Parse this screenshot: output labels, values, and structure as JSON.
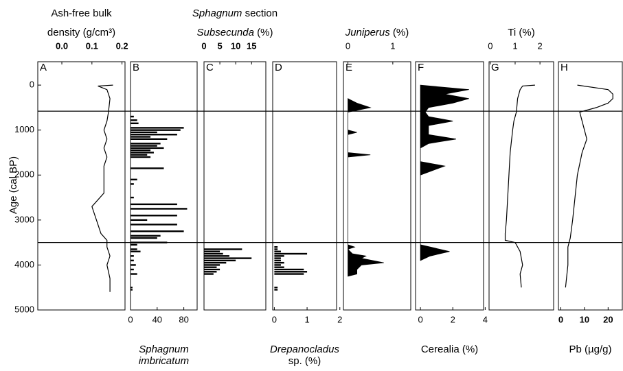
{
  "age_axis": {
    "label": "Age (cal BP)",
    "ylim": [
      -520,
      5000
    ],
    "yticks": [
      0,
      1000,
      2000,
      3000,
      4000,
      5000
    ],
    "zone_lines": [
      580,
      3500
    ]
  },
  "chart_data": [
    {
      "type": "line",
      "letter": "A",
      "side": "top",
      "bold_ticks": true,
      "title": [
        [
          {
            "text": "Ash-free bulk"
          }
        ],
        [
          {
            "text": "density (g/cm³)"
          }
        ]
      ],
      "xlim": [
        -0.08,
        0.21
      ],
      "xticks": [
        {
          "value": 0,
          "label": "0.0"
        },
        0.1,
        0.2
      ],
      "ages": [
        0,
        20,
        100,
        300,
        600,
        800,
        1000,
        1200,
        1400,
        1600,
        1800,
        2000,
        2400,
        2700,
        3000,
        3300,
        3450,
        3600,
        3800,
        4000,
        4300,
        4600
      ],
      "values": [
        0.17,
        0.12,
        0.15,
        0.16,
        0.155,
        0.15,
        0.14,
        0.15,
        0.14,
        0.15,
        0.14,
        0.14,
        0.14,
        0.1,
        0.115,
        0.13,
        0.15,
        0.15,
        0.16,
        0.15,
        0.16,
        0.16
      ]
    },
    {
      "type": "bar",
      "letter": "B",
      "side": "bottom",
      "bold_ticks": false,
      "title": [
        [
          {
            "text": "Sphagnum",
            "italic": true
          }
        ],
        [
          {
            "text": "imbricatum",
            "italic": true
          }
        ]
      ],
      "xlim": [
        0,
        100
      ],
      "xticks": [
        0,
        40,
        80
      ],
      "ages": [
        700,
        780,
        850,
        950,
        1000,
        1050,
        1100,
        1150,
        1200,
        1300,
        1350,
        1400,
        1450,
        1500,
        1550,
        1600,
        1850,
        2100,
        2200,
        2500,
        2650,
        2750,
        2900,
        3000,
        3100,
        3250,
        3350,
        3400,
        3500,
        3550,
        3650,
        3700,
        3800,
        3900,
        4000,
        4100,
        4200,
        4500,
        4550
      ],
      "values": [
        5,
        10,
        12,
        80,
        75,
        40,
        70,
        30,
        55,
        45,
        40,
        50,
        30,
        35,
        25,
        30,
        50,
        10,
        5,
        5,
        70,
        85,
        70,
        25,
        70,
        80,
        45,
        40,
        55,
        10,
        10,
        15,
        5,
        5,
        8,
        5,
        10,
        3,
        3
      ]
    },
    {
      "type": "bar",
      "letter": "C",
      "side": "top",
      "bold_ticks": true,
      "title": [
        [
          {
            "text": "Sphagnum",
            "italic": true
          },
          {
            "text": " section"
          }
        ],
        [
          {
            "text": "Subsecunda",
            "italic": true
          },
          {
            "text": " (%)"
          }
        ]
      ],
      "xlim": [
        0,
        19.5
      ],
      "xticks": [
        0,
        5,
        10,
        15
      ],
      "ages": [
        3650,
        3700,
        3750,
        3800,
        3850,
        3900,
        3950,
        4000,
        4050,
        4100,
        4150,
        4200
      ],
      "values": [
        12,
        5,
        6,
        8,
        15,
        10,
        7,
        5,
        4,
        5,
        4,
        3
      ]
    },
    {
      "type": "bar",
      "letter": "D",
      "side": "bottom",
      "bold_ticks": false,
      "title": [
        [
          {
            "text": "Drepanocladus",
            "italic": true
          }
        ],
        [
          {
            "text": "sp. (%)"
          }
        ]
      ],
      "xlim": [
        -0.05,
        1.9
      ],
      "xticks": [
        0,
        1,
        2
      ],
      "ages": [
        3600,
        3650,
        3700,
        3750,
        3800,
        3850,
        3900,
        3950,
        4000,
        4050,
        4100,
        4150,
        4200,
        4500,
        4550
      ],
      "values": [
        0.1,
        0.1,
        0.2,
        1,
        0.3,
        0.2,
        0.2,
        0.3,
        0.2,
        0.3,
        0.9,
        1,
        0.9,
        0.1,
        0.1
      ]
    },
    {
      "type": "area",
      "letter": "E",
      "side": "top",
      "bold_ticks": false,
      "title": [
        [
          {
            "text": "Juniperus",
            "italic": true
          },
          {
            "text": " (%)"
          }
        ]
      ],
      "xlim": [
        -0.1,
        1.4
      ],
      "xticks": [
        0,
        1
      ],
      "ages": [
        300,
        400,
        500,
        600,
        1000,
        1050,
        1100,
        1500,
        1550,
        1600,
        3550,
        3600,
        3650,
        3750,
        3800,
        3850,
        3950,
        4000,
        4100,
        4200,
        4250
      ],
      "values": [
        0,
        0.2,
        0.5,
        0,
        0,
        0.2,
        0,
        0,
        0.5,
        0,
        0,
        0.15,
        0,
        0.1,
        0.4,
        0.3,
        0.8,
        0.3,
        0.2,
        0.2,
        0
      ]
    },
    {
      "type": "area",
      "letter": "F",
      "side": "bottom",
      "bold_ticks": false,
      "title": [
        [
          {
            "text": "Cerealia (%)"
          }
        ]
      ],
      "xlim": [
        -0.3,
        3.9
      ],
      "xticks": [
        0,
        2,
        4
      ],
      "ages": [
        0,
        100,
        200,
        300,
        400,
        500,
        600,
        700,
        800,
        900,
        1000,
        1100,
        1200,
        1300,
        1400,
        1700,
        1800,
        2000,
        3550,
        3600,
        3700,
        3800,
        3900
      ],
      "values": [
        0,
        3,
        1.5,
        3,
        2,
        0.5,
        0.3,
        0.5,
        2,
        0.5,
        0.5,
        0.5,
        2.2,
        0.5,
        0,
        0,
        1.5,
        0,
        0,
        0.6,
        1.8,
        0.6,
        0
      ]
    },
    {
      "type": "line",
      "letter": "G",
      "side": "top",
      "bold_ticks": false,
      "title": [
        [
          {
            "text": "Ti (%)"
          }
        ]
      ],
      "xlim": [
        -0.05,
        2.55
      ],
      "xticks": [
        0,
        1,
        2
      ],
      "ages": [
        0,
        20,
        100,
        300,
        600,
        800,
        1000,
        1500,
        2000,
        2500,
        3000,
        3300,
        3450,
        3500,
        3700,
        4000,
        4200,
        4500
      ],
      "values": [
        1.8,
        1.3,
        1.2,
        1.1,
        1.05,
        0.95,
        0.9,
        0.8,
        0.75,
        0.7,
        0.65,
        0.6,
        0.6,
        1,
        1.2,
        1.3,
        1.2,
        1.25
      ]
    },
    {
      "type": "line",
      "letter": "H",
      "side": "bottom",
      "bold_ticks": true,
      "title": [
        [
          {
            "text": "Pb (µg/g)"
          }
        ]
      ],
      "xlim": [
        -1,
        26
      ],
      "xticks": [
        0,
        10,
        20
      ],
      "ages": [
        0,
        100,
        200,
        300,
        400,
        500,
        600,
        800,
        1000,
        1200,
        1500,
        2000,
        2500,
        3000,
        3400,
        3600,
        4000,
        4500
      ],
      "values": [
        7,
        20,
        22,
        22,
        20,
        15,
        8,
        9,
        10,
        11,
        9,
        7,
        6,
        5,
        4,
        3,
        3,
        2
      ]
    }
  ]
}
